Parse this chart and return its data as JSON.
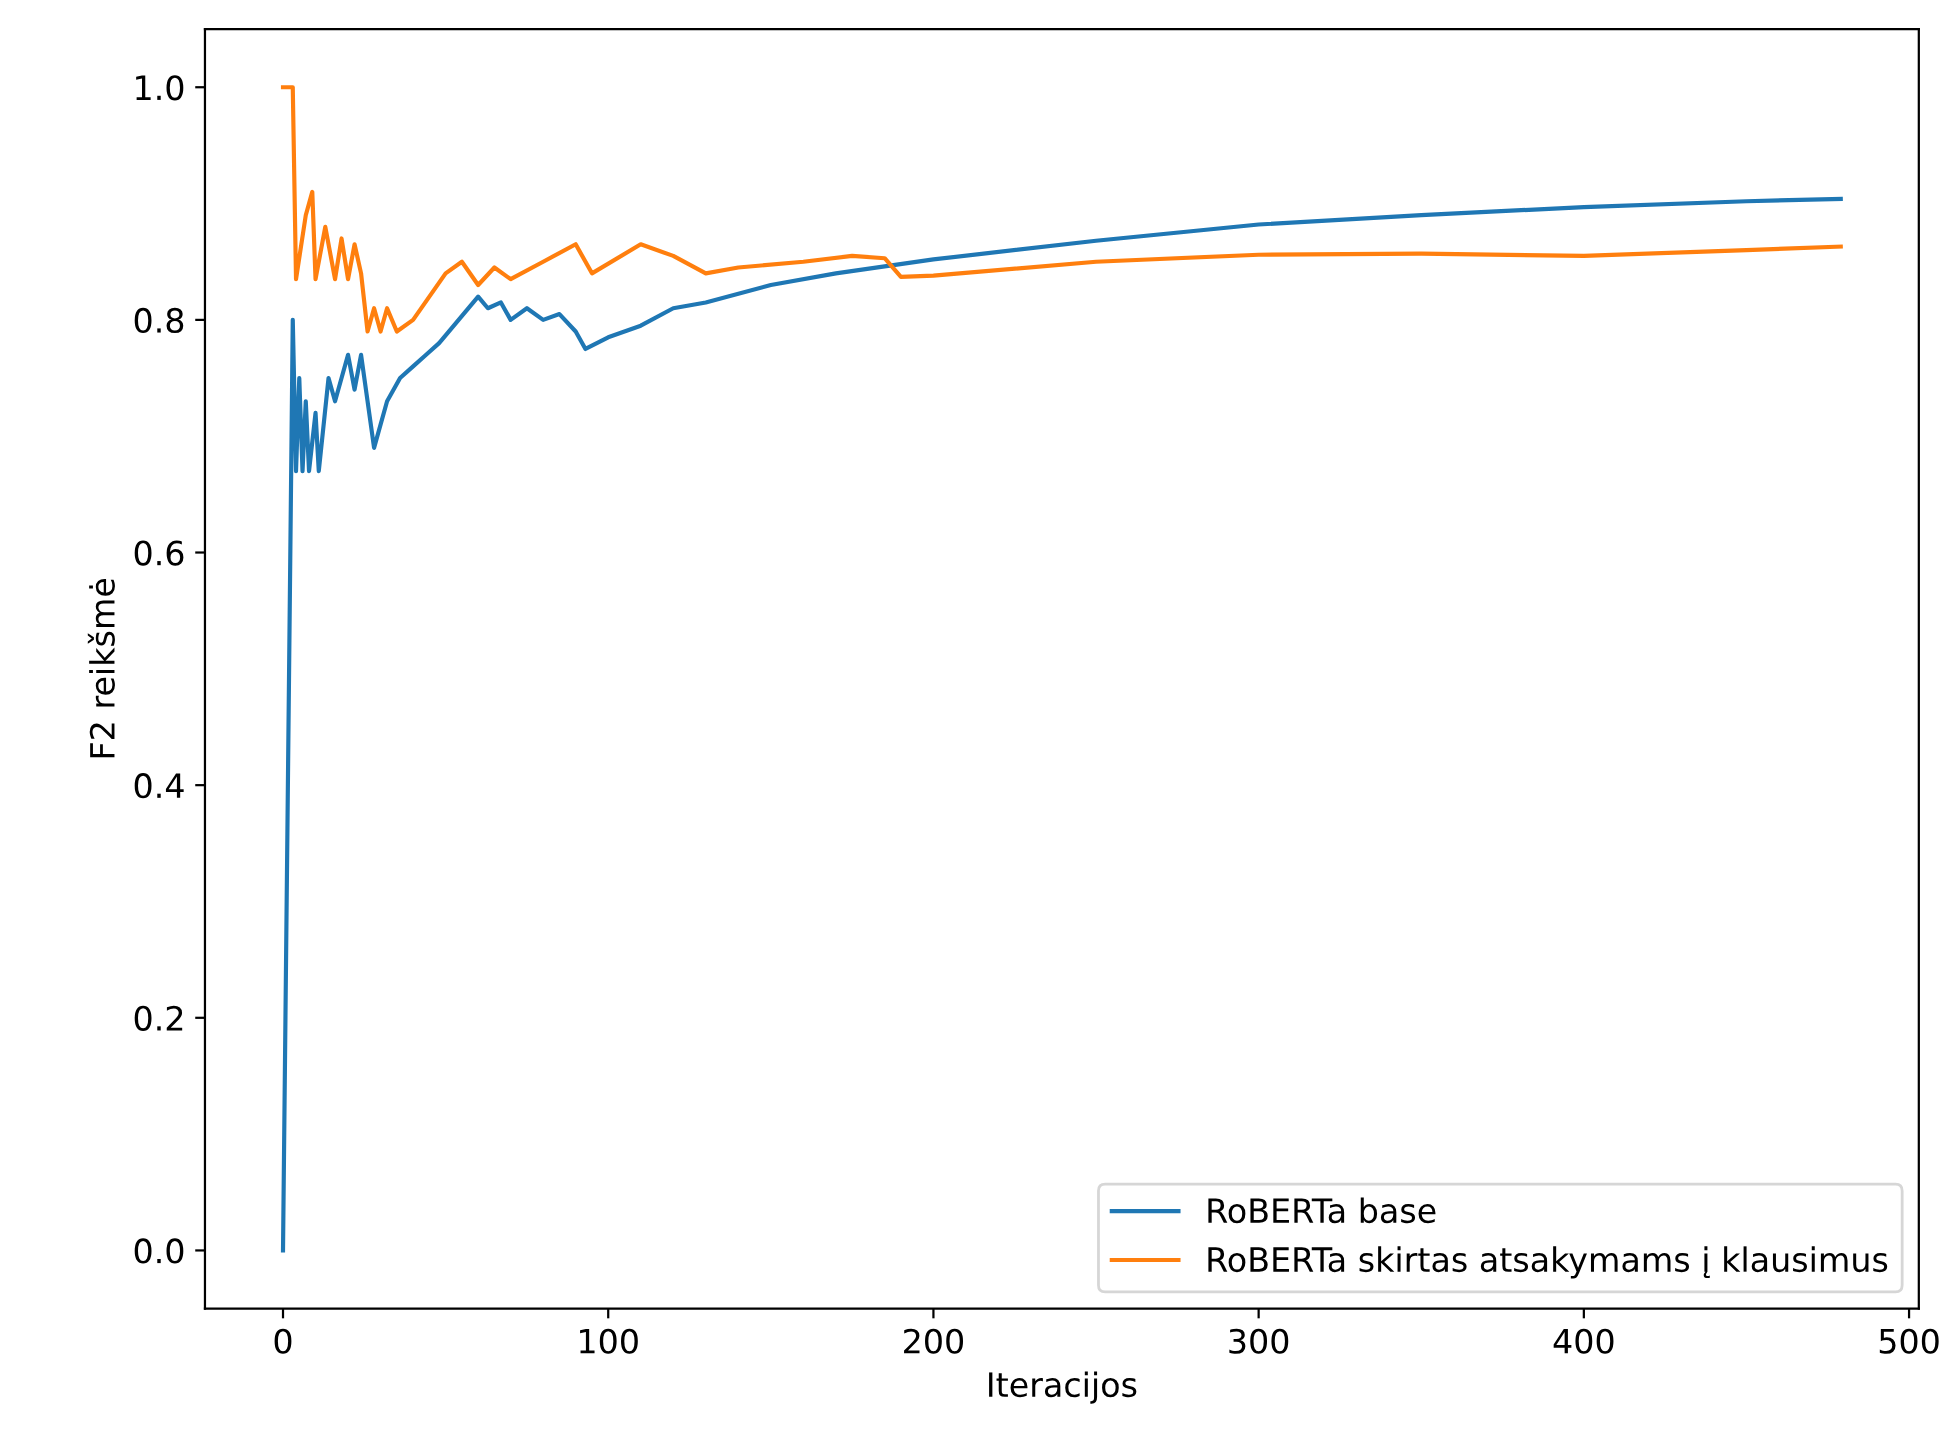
{
  "chart_data": {
    "type": "line",
    "xlabel": "Iteracijos",
    "ylabel": "F2 reikšmė",
    "xlim": [
      -24,
      503
    ],
    "ylim": [
      -0.05,
      1.05
    ],
    "xticks": [
      0,
      100,
      200,
      300,
      400,
      500
    ],
    "yticks": [
      {
        "value": 0,
        "label": "0.0"
      },
      0.2,
      0.4,
      0.6,
      0.8,
      {
        "value": 1,
        "label": "1.0"
      }
    ],
    "grid": false,
    "legend": "bottom right",
    "series": [
      {
        "name": "RoBERTa base",
        "color": "#1f77b4",
        "x": [
          0,
          3,
          4,
          5,
          6,
          7,
          8,
          10,
          11,
          14,
          16,
          20,
          22,
          24,
          26,
          28,
          32,
          36,
          40,
          44,
          48,
          54,
          60,
          63,
          67,
          70,
          75,
          80,
          85,
          90,
          93,
          100,
          110,
          120,
          130,
          150,
          170,
          200,
          250,
          300,
          350,
          400,
          450,
          479
        ],
        "values": [
          0.0,
          0.8,
          0.67,
          0.75,
          0.67,
          0.73,
          0.67,
          0.72,
          0.67,
          0.75,
          0.73,
          0.77,
          0.74,
          0.77,
          0.73,
          0.69,
          0.73,
          0.75,
          0.76,
          0.77,
          0.78,
          0.8,
          0.82,
          0.81,
          0.815,
          0.8,
          0.81,
          0.8,
          0.805,
          0.79,
          0.775,
          0.785,
          0.795,
          0.81,
          0.815,
          0.83,
          0.84,
          0.852,
          0.868,
          0.882,
          0.89,
          0.897,
          0.902,
          0.904
        ]
      },
      {
        "name": "RoBERTa skirtas atsakymams į klausimus",
        "color": "#ff7f0e",
        "x": [
          0,
          3,
          4,
          7,
          9,
          10,
          13,
          16,
          18,
          20,
          22,
          24,
          26,
          28,
          30,
          32,
          35,
          40,
          50,
          55,
          60,
          65,
          70,
          80,
          90,
          95,
          110,
          120,
          130,
          140,
          160,
          175,
          185,
          190,
          200,
          250,
          300,
          350,
          400,
          450,
          479
        ],
        "values": [
          1.0,
          1.0,
          0.835,
          0.89,
          0.91,
          0.835,
          0.88,
          0.835,
          0.87,
          0.835,
          0.865,
          0.84,
          0.79,
          0.81,
          0.79,
          0.81,
          0.79,
          0.8,
          0.84,
          0.85,
          0.83,
          0.845,
          0.835,
          0.85,
          0.865,
          0.84,
          0.865,
          0.855,
          0.84,
          0.845,
          0.85,
          0.855,
          0.853,
          0.837,
          0.838,
          0.85,
          0.856,
          0.857,
          0.855,
          0.86,
          0.863
        ]
      }
    ]
  }
}
